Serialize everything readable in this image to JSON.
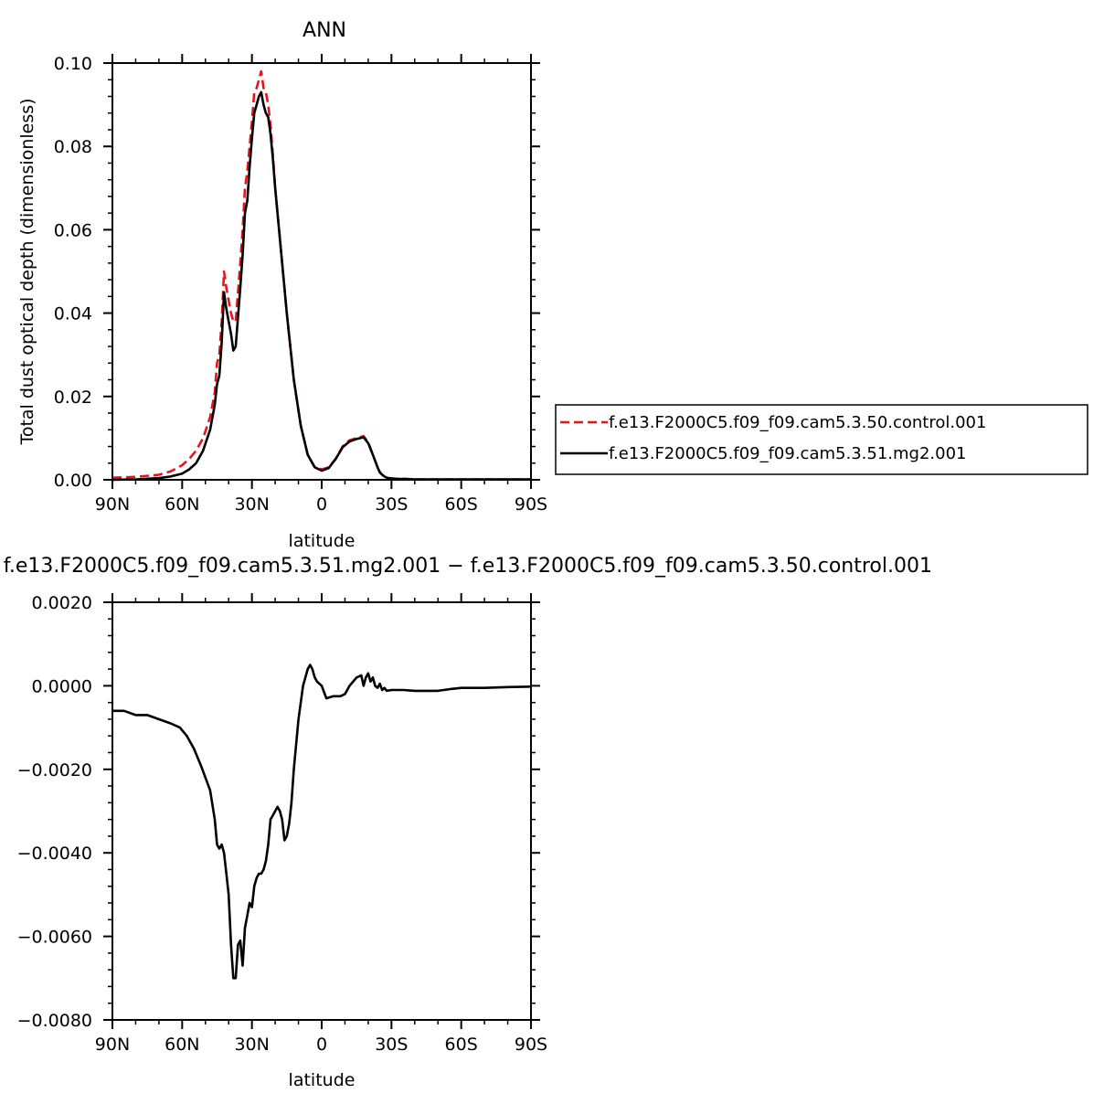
{
  "colors": {
    "control": "#e8141b",
    "mg2": "#000000",
    "frame": "#000000",
    "background": "#ffffff"
  },
  "top_plot": {
    "title": "ANN",
    "xlabel": "latitude",
    "ylabel": "Total dust optical depth (dimensionless)",
    "xticklabels": [
      "90N",
      "60N",
      "30N",
      "0",
      "30S",
      "60S",
      "90S"
    ],
    "yticklabels": [
      "0.00",
      "0.02",
      "0.04",
      "0.06",
      "0.08",
      "0.10"
    ]
  },
  "bottom_plot": {
    "title": "f.e13.F2000C5.f09_f09.cam5.3.51.mg2.001 − f.e13.F2000C5.f09_f09.cam5.3.50.control.001",
    "xlabel": "latitude",
    "xticklabels": [
      "90N",
      "60N",
      "30N",
      "0",
      "30S",
      "60S",
      "90S"
    ],
    "yticklabels": [
      "0.0020",
      "0.0000",
      "−0.0020",
      "−0.0040",
      "−0.0060",
      "−0.0080"
    ]
  },
  "legend": {
    "items": [
      {
        "label": "f.e13.F2000C5.f09_f09.cam5.3.50.control.001",
        "color": "#e8141b",
        "style": "dashed"
      },
      {
        "label": "f.e13.F2000C5.f09_f09.cam5.3.51.mg2.001",
        "color": "#000000",
        "style": "solid"
      }
    ]
  },
  "chart_data": [
    {
      "type": "line",
      "title": "ANN",
      "xlabel": "latitude",
      "ylabel": "Total dust optical depth (dimensionless)",
      "x_axis_note": "latitude in degrees, positive = north; axis runs 90N (left) to 90S (right)",
      "xlim": [
        90,
        -90
      ],
      "ylim": [
        0.0,
        0.1
      ],
      "xticks": [
        90,
        60,
        30,
        0,
        -30,
        -60,
        -90
      ],
      "yticks": [
        0.0,
        0.02,
        0.04,
        0.06,
        0.08,
        0.1
      ],
      "grid": false,
      "legend_position": "right",
      "series": [
        {
          "name": "f.e13.F2000C5.f09_f09.cam5.3.50.control.001",
          "color": "#e8141b",
          "style": "dashed",
          "x": [
            90,
            80,
            70,
            65,
            60,
            57,
            54,
            51,
            48,
            46,
            45,
            44,
            43,
            42,
            41,
            40,
            39,
            38,
            37,
            36,
            35,
            34,
            33,
            32,
            31,
            30,
            29,
            28,
            27,
            26,
            25,
            24,
            23,
            22,
            21,
            20,
            18,
            15,
            12,
            9,
            6,
            3,
            0,
            -3,
            -6,
            -9,
            -12,
            -15,
            -18,
            -20,
            -22,
            -24,
            -25,
            -26,
            -27,
            -28,
            -30,
            -33,
            -36,
            -40,
            -50,
            -60,
            -70,
            -80,
            -90
          ],
          "y": [
            0.0005,
            0.0007,
            0.0012,
            0.002,
            0.0035,
            0.005,
            0.007,
            0.01,
            0.015,
            0.021,
            0.028,
            0.03,
            0.038,
            0.05,
            0.046,
            0.043,
            0.04,
            0.038,
            0.038,
            0.045,
            0.052,
            0.06,
            0.07,
            0.074,
            0.08,
            0.086,
            0.093,
            0.094,
            0.096,
            0.098,
            0.094,
            0.093,
            0.09,
            0.085,
            0.078,
            0.07,
            0.058,
            0.04,
            0.024,
            0.013,
            0.006,
            0.003,
            0.0025,
            0.003,
            0.005,
            0.008,
            0.0095,
            0.01,
            0.0105,
            0.009,
            0.006,
            0.003,
            0.0018,
            0.0012,
            0.0008,
            0.0005,
            0.0003,
            0.0002,
            0.0002,
            0.0001,
            0.0001,
            0.0001,
            0.0001,
            0.0001,
            0.0001
          ]
        },
        {
          "name": "f.e13.F2000C5.f09_f09.cam5.3.51.mg2.001",
          "color": "#000000",
          "style": "solid",
          "x": [
            90,
            80,
            70,
            65,
            60,
            57,
            54,
            51,
            48,
            46,
            45,
            44,
            43,
            42,
            41,
            40,
            39,
            38,
            37,
            36,
            35,
            34,
            33,
            32,
            31,
            30,
            29,
            28,
            27,
            26,
            25,
            24,
            23,
            22,
            21,
            20,
            18,
            15,
            12,
            9,
            6,
            3,
            0,
            -3,
            -6,
            -9,
            -12,
            -15,
            -18,
            -20,
            -22,
            -24,
            -25,
            -26,
            -27,
            -28,
            -30,
            -33,
            -36,
            -40,
            -50,
            -60,
            -70,
            -80,
            -90
          ],
          "y": [
            0.0,
            0.0001,
            0.0004,
            0.0008,
            0.0015,
            0.0025,
            0.004,
            0.007,
            0.012,
            0.018,
            0.023,
            0.025,
            0.033,
            0.045,
            0.041,
            0.038,
            0.035,
            0.031,
            0.032,
            0.039,
            0.046,
            0.054,
            0.064,
            0.067,
            0.075,
            0.082,
            0.088,
            0.09,
            0.092,
            0.093,
            0.09,
            0.088,
            0.087,
            0.083,
            0.077,
            0.07,
            0.058,
            0.04,
            0.024,
            0.013,
            0.006,
            0.003,
            0.0022,
            0.0028,
            0.005,
            0.0078,
            0.0092,
            0.0098,
            0.0102,
            0.0088,
            0.006,
            0.003,
            0.0018,
            0.0012,
            0.0008,
            0.0005,
            0.0003,
            0.0002,
            0.0002,
            0.0001,
            0.0001,
            0.0001,
            0.0001,
            0.0001,
            0.0001
          ]
        }
      ]
    },
    {
      "type": "line",
      "title": "f.e13.F2000C5.f09_f09.cam5.3.51.mg2.001 − f.e13.F2000C5.f09_f09.cam5.3.50.control.001",
      "xlabel": "latitude",
      "ylabel": "",
      "x_axis_note": "latitude in degrees, positive = north; axis runs 90N (left) to 90S (right)",
      "xlim": [
        90,
        -90
      ],
      "ylim": [
        -0.008,
        0.002
      ],
      "xticks": [
        90,
        60,
        30,
        0,
        -30,
        -60,
        -90
      ],
      "yticks": [
        0.002,
        0.0,
        -0.002,
        -0.004,
        -0.006,
        -0.008
      ],
      "grid": false,
      "series": [
        {
          "name": "f.e13.F2000C5.f09_f09.cam5.3.51.mg2.001 − f.e13.F2000C5.f09_f09.cam5.3.50.control.001",
          "color": "#000000",
          "style": "solid",
          "x": [
            90,
            85,
            80,
            75,
            70,
            65,
            61,
            58,
            55,
            52,
            50,
            48,
            46,
            45,
            44,
            43,
            42,
            41,
            40,
            39,
            38,
            37,
            36,
            35,
            34,
            33,
            32,
            31,
            30,
            29,
            28,
            27,
            26,
            25,
            24,
            23,
            22,
            21,
            20,
            19,
            18,
            17,
            16,
            15,
            14,
            13,
            12,
            10,
            8,
            6,
            5,
            4,
            3,
            2,
            0,
            -2,
            -5,
            -8,
            -10,
            -12,
            -15,
            -17,
            -18,
            -19,
            -20,
            -21,
            -22,
            -23,
            -24,
            -25,
            -26,
            -27,
            -28,
            -30,
            -35,
            -40,
            -45,
            -50,
            -55,
            -60,
            -70,
            -80,
            -90
          ],
          "y": [
            -0.0006,
            -0.0006,
            -0.0007,
            -0.0007,
            -0.0008,
            -0.0009,
            -0.001,
            -0.0012,
            -0.0015,
            -0.0019,
            -0.0022,
            -0.0025,
            -0.0032,
            -0.0038,
            -0.0039,
            -0.0038,
            -0.004,
            -0.0045,
            -0.005,
            -0.0062,
            -0.007,
            -0.007,
            -0.0062,
            -0.0061,
            -0.0067,
            -0.0058,
            -0.0055,
            -0.0052,
            -0.0053,
            -0.0048,
            -0.0046,
            -0.0045,
            -0.0045,
            -0.0044,
            -0.0042,
            -0.0038,
            -0.0032,
            -0.0031,
            -0.003,
            -0.0029,
            -0.003,
            -0.0032,
            -0.0037,
            -0.0036,
            -0.0033,
            -0.0028,
            -0.002,
            -0.0008,
            0.0,
            0.0004,
            0.0005,
            0.0004,
            0.0002,
            0.0001,
            0.0,
            -0.0003,
            -0.00025,
            -0.00025,
            -0.0002,
            0.0,
            0.0002,
            0.00025,
            0.0,
            0.0002,
            0.0003,
            0.0001,
            0.0002,
            0.0,
            -5e-05,
            5e-05,
            -0.0001,
            -5e-05,
            -0.00012,
            -0.0001,
            -0.0001,
            -0.00012,
            -0.00012,
            -0.00012,
            -8e-05,
            -5e-05,
            -5e-05,
            -3e-05,
            -2e-05
          ]
        }
      ]
    }
  ]
}
